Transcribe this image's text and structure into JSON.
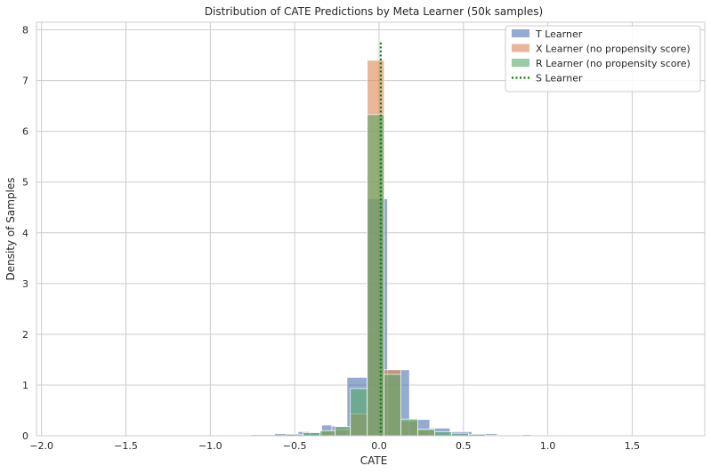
{
  "chart_data": {
    "type": "bar",
    "title": "Distribution of CATE Predictions by Meta Learner (50k samples)",
    "xlabel": "CATE",
    "ylabel": "Density of Samples",
    "xlim": [
      -2.03,
      1.93
    ],
    "ylim": [
      0,
      8.15
    ],
    "xticks": [
      -2.0,
      -1.5,
      -1.0,
      -0.5,
      0.0,
      0.5,
      1.0,
      1.5
    ],
    "xtick_labels": [
      "−2.0",
      "−1.5",
      "−1.0",
      "−0.5",
      "0.0",
      "0.5",
      "1.0",
      "1.5"
    ],
    "yticks": [
      0,
      1,
      2,
      3,
      4,
      5,
      6,
      7,
      8
    ],
    "ytick_labels": [
      "0",
      "1",
      "2",
      "3",
      "4",
      "5",
      "6",
      "7",
      "8"
    ],
    "grid": true,
    "legend_position": "top-right",
    "series": [
      {
        "name": "T Learner",
        "kind": "histogram",
        "color": "#4c72b0",
        "opacity": 0.6,
        "bins": [
          {
            "x0": -2.0,
            "x1": -1.86,
            "y": 0.005
          },
          {
            "x0": -0.9,
            "x1": -0.76,
            "y": 0.01
          },
          {
            "x0": -0.76,
            "x1": -0.62,
            "y": 0.02
          },
          {
            "x0": -0.62,
            "x1": -0.48,
            "y": 0.04
          },
          {
            "x0": -0.48,
            "x1": -0.41,
            "y": 0.08
          },
          {
            "x0": -0.41,
            "x1": -0.34,
            "y": 0.07
          },
          {
            "x0": -0.34,
            "x1": -0.28,
            "y": 0.21
          },
          {
            "x0": -0.28,
            "x1": -0.19,
            "y": 0.19
          },
          {
            "x0": -0.19,
            "x1": -0.07,
            "y": 1.15
          },
          {
            "x0": -0.07,
            "x1": 0.05,
            "y": 4.67
          },
          {
            "x0": 0.05,
            "x1": 0.18,
            "y": 1.3
          },
          {
            "x0": 0.18,
            "x1": 0.3,
            "y": 0.32
          },
          {
            "x0": 0.3,
            "x1": 0.42,
            "y": 0.15
          },
          {
            "x0": 0.42,
            "x1": 0.55,
            "y": 0.08
          },
          {
            "x0": 0.55,
            "x1": 0.7,
            "y": 0.04
          },
          {
            "x0": 0.7,
            "x1": 0.9,
            "y": 0.02
          },
          {
            "x0": 0.9,
            "x1": 1.1,
            "y": 0.01
          }
        ]
      },
      {
        "name": "X Learner (no propensity score)",
        "kind": "histogram",
        "color": "#dd8452",
        "opacity": 0.6,
        "bins": [
          {
            "x0": -0.34,
            "x1": -0.26,
            "y": 0.1
          },
          {
            "x0": -0.26,
            "x1": -0.17,
            "y": 0.12
          },
          {
            "x0": -0.17,
            "x1": -0.07,
            "y": 0.43
          },
          {
            "x0": -0.07,
            "x1": 0.03,
            "y": 7.4
          },
          {
            "x0": 0.03,
            "x1": 0.13,
            "y": 1.3
          },
          {
            "x0": 0.13,
            "x1": 0.23,
            "y": 0.3
          },
          {
            "x0": 0.23,
            "x1": 0.33,
            "y": 0.11
          }
        ]
      },
      {
        "name": "R Learner (no propensity score)",
        "kind": "histogram",
        "color": "#55a868",
        "opacity": 0.6,
        "bins": [
          {
            "x0": -0.55,
            "x1": -0.45,
            "y": 0.03
          },
          {
            "x0": -0.45,
            "x1": -0.35,
            "y": 0.06
          },
          {
            "x0": -0.35,
            "x1": -0.26,
            "y": 0.1
          },
          {
            "x0": -0.26,
            "x1": -0.17,
            "y": 0.18
          },
          {
            "x0": -0.17,
            "x1": -0.07,
            "y": 0.93
          },
          {
            "x0": -0.07,
            "x1": 0.03,
            "y": 6.33
          },
          {
            "x0": 0.03,
            "x1": 0.13,
            "y": 1.21
          },
          {
            "x0": 0.13,
            "x1": 0.23,
            "y": 0.33
          },
          {
            "x0": 0.23,
            "x1": 0.33,
            "y": 0.13
          },
          {
            "x0": 0.33,
            "x1": 0.43,
            "y": 0.08
          },
          {
            "x0": 0.43,
            "x1": 0.53,
            "y": 0.05
          },
          {
            "x0": 0.53,
            "x1": 0.63,
            "y": 0.03
          },
          {
            "x0": 0.63,
            "x1": 0.85,
            "y": 0.01
          }
        ]
      },
      {
        "name": "S Learner",
        "kind": "vline",
        "color": "#007f00",
        "line_style": "dotted",
        "x": 0.01,
        "y_top": 7.75
      }
    ]
  }
}
